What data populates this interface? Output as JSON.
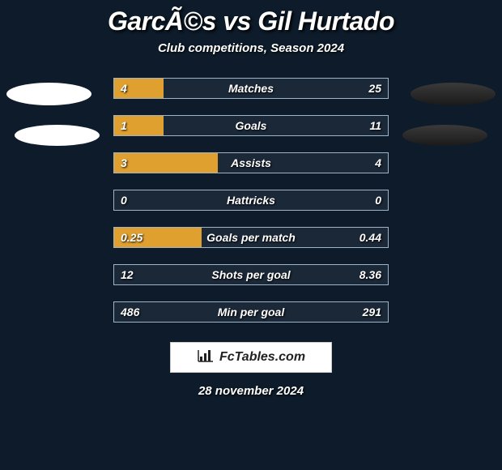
{
  "title": "GarcÃ©s vs Gil Hurtado",
  "subtitle": "Club competitions, Season 2024",
  "date": "28 november 2024",
  "logo": "FcTables.com",
  "colors": {
    "background": "#0d1b2a",
    "bar_left": "#e0a030",
    "bar_right": "#3a6ea5",
    "row_bg": "#1b2838",
    "row_border": "#9fb3c8",
    "badge_left": "#ffffff",
    "badge_right_top": "#3a3a3a",
    "badge_right_bot": "#1a1a1a"
  },
  "rows": [
    {
      "label": "Matches",
      "left": "4",
      "right": "25",
      "leftPct": 18,
      "rightPct": 0
    },
    {
      "label": "Goals",
      "left": "1",
      "right": "11",
      "leftPct": 18,
      "rightPct": 0
    },
    {
      "label": "Assists",
      "left": "3",
      "right": "4",
      "leftPct": 38,
      "rightPct": 0
    },
    {
      "label": "Hattricks",
      "left": "0",
      "right": "0",
      "leftPct": 0,
      "rightPct": 0
    },
    {
      "label": "Goals per match",
      "left": "0.25",
      "right": "0.44",
      "leftPct": 32,
      "rightPct": 0
    },
    {
      "label": "Shots per goal",
      "left": "12",
      "right": "8.36",
      "leftPct": 0,
      "rightPct": 0
    },
    {
      "label": "Min per goal",
      "left": "486",
      "right": "291",
      "leftPct": 0,
      "rightPct": 0
    }
  ]
}
